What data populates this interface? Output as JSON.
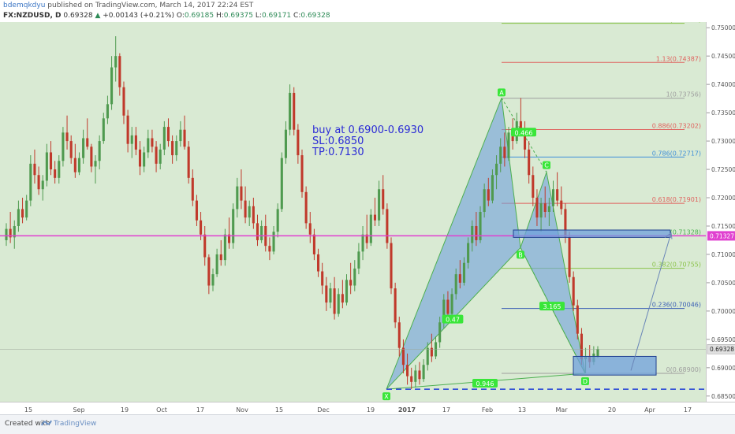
{
  "header": {
    "author": "bdemqkdyu",
    "published": "published on TradingView.com, March 14, 2017 22:24 EST",
    "symbol": "FX:NZDUSD, D",
    "last": "0.69328",
    "change": "+0.00143 (+0.21%)",
    "o_label": "O:",
    "open": "0.69185",
    "h_label": "H:",
    "high": "0.69375",
    "l_label": "L:",
    "low": "0.69171",
    "c_label": "C:",
    "close": "0.69328"
  },
  "footer": {
    "created_with": "Created with",
    "brand": "TradingView"
  },
  "colors": {
    "background": "#d9ead3",
    "up_candle": "#4f9a4f",
    "down_candle": "#c0392b",
    "pattern_fill": "#6fa0dc",
    "horizontal_line": "#e040d0",
    "support_dash": "#1f3fd6",
    "annotation_text": "#2b2bd6"
  },
  "annotation": {
    "line1": "buy at  0.6900-0.6930",
    "line2": "SL:0.6850",
    "line3": "TP:0.7130"
  },
  "chart_data": {
    "type": "candlestick",
    "symbol": "FX:NZDUSD",
    "timeframe": "D",
    "ylim": [
      0.684,
      0.751
    ],
    "y_ticks": [
      "0.75000",
      "0.74500",
      "0.74000",
      "0.73500",
      "0.73000",
      "0.72500",
      "0.72000",
      "0.71500",
      "0.71000",
      "0.70500",
      "0.70000",
      "0.69500",
      "0.69000",
      "0.68500"
    ],
    "x_ticks": [
      "15",
      "Sep",
      "19",
      "Oct",
      "17",
      "Nov",
      "15",
      "Dec",
      "19",
      "2017",
      "17",
      "Feb",
      "13",
      "Mar",
      "20",
      "Apr",
      "17"
    ],
    "current_price": "0.69328",
    "horizontal_line": "0.71327",
    "fib_levels": [
      {
        "label": "1.272(0.75077)",
        "value": 0.75077,
        "color": "#8bc34a"
      },
      {
        "label": "1.13(0.74387)",
        "value": 0.74387,
        "color": "#e0625e"
      },
      {
        "label": "1(0.73756)",
        "value": 0.73756,
        "color": "#9e9e9e"
      },
      {
        "label": "0.886(0.73202)",
        "value": 0.73202,
        "color": "#e0625e"
      },
      {
        "label": "0.786(0.72717)",
        "value": 0.72717,
        "color": "#3f8fd8"
      },
      {
        "label": "0.618(0.71901)",
        "value": 0.71901,
        "color": "#e0625e"
      },
      {
        "label": "(0.71328)",
        "value": 0.71328,
        "color": "#4caf50"
      },
      {
        "label": "0.382(0.70755)",
        "value": 0.70755,
        "color": "#8bc34a"
      },
      {
        "label": "0.236(0.70046)",
        "value": 0.70046,
        "color": "#3a5fb5"
      },
      {
        "label": "0(0.68900)",
        "value": 0.689,
        "color": "#9e9e9e"
      }
    ],
    "pattern_points": [
      {
        "label": "X",
        "value": 0.6862
      },
      {
        "label": "A",
        "value": 0.7376
      },
      {
        "label": "B",
        "value": 0.7112
      },
      {
        "label": "C",
        "value": 0.7245
      },
      {
        "label": "D",
        "value": 0.689
      }
    ],
    "pattern_ratios": [
      "0.466",
      "0.47",
      "3.165",
      "0.946"
    ],
    "support_line": 0.6862,
    "candles": [
      [
        0.7125,
        0.7155,
        0.7115,
        0.7145
      ],
      [
        0.7145,
        0.7175,
        0.712,
        0.713
      ],
      [
        0.713,
        0.716,
        0.711,
        0.715
      ],
      [
        0.715,
        0.7195,
        0.714,
        0.718
      ],
      [
        0.718,
        0.72,
        0.7155,
        0.7165
      ],
      [
        0.7165,
        0.7205,
        0.716,
        0.7195
      ],
      [
        0.7195,
        0.7275,
        0.7185,
        0.726
      ],
      [
        0.726,
        0.7285,
        0.7225,
        0.724
      ],
      [
        0.724,
        0.7255,
        0.7205,
        0.7215
      ],
      [
        0.7215,
        0.724,
        0.7195,
        0.723
      ],
      [
        0.723,
        0.7295,
        0.722,
        0.728
      ],
      [
        0.728,
        0.73,
        0.724,
        0.725
      ],
      [
        0.725,
        0.7265,
        0.7225,
        0.7235
      ],
      [
        0.7235,
        0.7275,
        0.7225,
        0.7265
      ],
      [
        0.7265,
        0.7325,
        0.7255,
        0.7315
      ],
      [
        0.7315,
        0.7345,
        0.7285,
        0.73
      ],
      [
        0.73,
        0.731,
        0.726,
        0.727
      ],
      [
        0.727,
        0.7295,
        0.7235,
        0.7245
      ],
      [
        0.7245,
        0.728,
        0.724,
        0.727
      ],
      [
        0.727,
        0.732,
        0.726,
        0.7305
      ],
      [
        0.7305,
        0.734,
        0.7285,
        0.729
      ],
      [
        0.729,
        0.7295,
        0.7245,
        0.7255
      ],
      [
        0.7255,
        0.7275,
        0.7225,
        0.7265
      ],
      [
        0.7265,
        0.731,
        0.725,
        0.73
      ],
      [
        0.73,
        0.735,
        0.7295,
        0.734
      ],
      [
        0.734,
        0.738,
        0.733,
        0.7365
      ],
      [
        0.7365,
        0.745,
        0.7355,
        0.743
      ],
      [
        0.743,
        0.7485,
        0.7405,
        0.745
      ],
      [
        0.745,
        0.7455,
        0.738,
        0.7395
      ],
      [
        0.7395,
        0.7405,
        0.733,
        0.7345
      ],
      [
        0.7345,
        0.7355,
        0.728,
        0.7295
      ],
      [
        0.7295,
        0.7325,
        0.727,
        0.731
      ],
      [
        0.731,
        0.7325,
        0.7275,
        0.7285
      ],
      [
        0.7285,
        0.73,
        0.724,
        0.7255
      ],
      [
        0.7255,
        0.729,
        0.7245,
        0.728
      ],
      [
        0.728,
        0.732,
        0.727,
        0.7305
      ],
      [
        0.7305,
        0.732,
        0.728,
        0.729
      ],
      [
        0.729,
        0.73,
        0.7245,
        0.726
      ],
      [
        0.726,
        0.7295,
        0.725,
        0.7285
      ],
      [
        0.7285,
        0.7335,
        0.7275,
        0.7325
      ],
      [
        0.7325,
        0.734,
        0.729,
        0.73
      ],
      [
        0.73,
        0.731,
        0.726,
        0.7275
      ],
      [
        0.7275,
        0.731,
        0.7265,
        0.73
      ],
      [
        0.73,
        0.7335,
        0.729,
        0.732
      ],
      [
        0.732,
        0.7345,
        0.7285,
        0.729
      ],
      [
        0.729,
        0.73,
        0.7225,
        0.7235
      ],
      [
        0.7235,
        0.725,
        0.7185,
        0.7195
      ],
      [
        0.7195,
        0.7205,
        0.715,
        0.716
      ],
      [
        0.716,
        0.7175,
        0.7125,
        0.7135
      ],
      [
        0.7135,
        0.715,
        0.708,
        0.7095
      ],
      [
        0.7095,
        0.71,
        0.703,
        0.7045
      ],
      [
        0.7045,
        0.7075,
        0.7035,
        0.7065
      ],
      [
        0.7065,
        0.711,
        0.706,
        0.71
      ],
      [
        0.71,
        0.7125,
        0.708,
        0.709
      ],
      [
        0.709,
        0.7145,
        0.708,
        0.7135
      ],
      [
        0.7135,
        0.7165,
        0.711,
        0.712
      ],
      [
        0.712,
        0.719,
        0.711,
        0.718
      ],
      [
        0.718,
        0.7235,
        0.7165,
        0.722
      ],
      [
        0.722,
        0.725,
        0.718,
        0.7195
      ],
      [
        0.7195,
        0.722,
        0.7155,
        0.7165
      ],
      [
        0.7165,
        0.7195,
        0.715,
        0.7185
      ],
      [
        0.7185,
        0.72,
        0.7145,
        0.7155
      ],
      [
        0.7155,
        0.717,
        0.7115,
        0.7125
      ],
      [
        0.7125,
        0.716,
        0.712,
        0.715
      ],
      [
        0.715,
        0.717,
        0.7105,
        0.7115
      ],
      [
        0.7115,
        0.713,
        0.709,
        0.7105
      ],
      [
        0.7105,
        0.715,
        0.71,
        0.714
      ],
      [
        0.714,
        0.719,
        0.713,
        0.718
      ],
      [
        0.718,
        0.728,
        0.7175,
        0.727
      ],
      [
        0.727,
        0.7335,
        0.726,
        0.732
      ],
      [
        0.732,
        0.74,
        0.731,
        0.7385
      ],
      [
        0.7385,
        0.7395,
        0.731,
        0.732
      ],
      [
        0.732,
        0.733,
        0.726,
        0.7275
      ],
      [
        0.7275,
        0.7285,
        0.72,
        0.721
      ],
      [
        0.721,
        0.722,
        0.7145,
        0.7155
      ],
      [
        0.7155,
        0.7175,
        0.712,
        0.7135
      ],
      [
        0.7135,
        0.7145,
        0.709,
        0.71
      ],
      [
        0.71,
        0.711,
        0.706,
        0.707
      ],
      [
        0.707,
        0.7085,
        0.703,
        0.7045
      ],
      [
        0.7045,
        0.706,
        0.7,
        0.7015
      ],
      [
        0.7015,
        0.705,
        0.7005,
        0.704
      ],
      [
        0.704,
        0.706,
        0.6985,
        0.6995
      ],
      [
        0.6995,
        0.704,
        0.699,
        0.703
      ],
      [
        0.703,
        0.7055,
        0.7005,
        0.7015
      ],
      [
        0.7015,
        0.7065,
        0.701,
        0.7055
      ],
      [
        0.7055,
        0.7085,
        0.703,
        0.7045
      ],
      [
        0.7045,
        0.709,
        0.7035,
        0.7075
      ],
      [
        0.7075,
        0.712,
        0.7065,
        0.7105
      ],
      [
        0.7105,
        0.715,
        0.709,
        0.7135
      ],
      [
        0.7135,
        0.717,
        0.711,
        0.712
      ],
      [
        0.712,
        0.718,
        0.7115,
        0.717
      ],
      [
        0.717,
        0.72,
        0.715,
        0.716
      ],
      [
        0.716,
        0.723,
        0.715,
        0.7215
      ],
      [
        0.7215,
        0.724,
        0.717,
        0.718
      ],
      [
        0.718,
        0.719,
        0.711,
        0.712
      ],
      [
        0.712,
        0.713,
        0.703,
        0.704
      ],
      [
        0.704,
        0.705,
        0.697,
        0.698
      ],
      [
        0.698,
        0.699,
        0.692,
        0.6935
      ],
      [
        0.6935,
        0.695,
        0.689,
        0.6905
      ],
      [
        0.6905,
        0.6925,
        0.687,
        0.6885
      ],
      [
        0.6885,
        0.69,
        0.6862,
        0.6875
      ],
      [
        0.6875,
        0.6905,
        0.6865,
        0.6895
      ],
      [
        0.6895,
        0.691,
        0.687,
        0.688
      ],
      [
        0.688,
        0.6915,
        0.6875,
        0.6905
      ],
      [
        0.6905,
        0.6945,
        0.6895,
        0.6935
      ],
      [
        0.6935,
        0.696,
        0.691,
        0.692
      ],
      [
        0.692,
        0.6955,
        0.6915,
        0.6945
      ],
      [
        0.6945,
        0.699,
        0.6935,
        0.698
      ],
      [
        0.698,
        0.703,
        0.697,
        0.702
      ],
      [
        0.702,
        0.7035,
        0.6985,
        0.6995
      ],
      [
        0.6995,
        0.704,
        0.6985,
        0.703
      ],
      [
        0.703,
        0.7075,
        0.702,
        0.7065
      ],
      [
        0.7065,
        0.709,
        0.704,
        0.705
      ],
      [
        0.705,
        0.7095,
        0.7045,
        0.7085
      ],
      [
        0.7085,
        0.713,
        0.7075,
        0.712
      ],
      [
        0.712,
        0.716,
        0.7105,
        0.715
      ],
      [
        0.715,
        0.7175,
        0.7115,
        0.7125
      ],
      [
        0.7125,
        0.7185,
        0.712,
        0.7175
      ],
      [
        0.7175,
        0.7225,
        0.7165,
        0.7215
      ],
      [
        0.7215,
        0.7235,
        0.7185,
        0.7195
      ],
      [
        0.7195,
        0.725,
        0.719,
        0.724
      ],
      [
        0.724,
        0.7275,
        0.7215,
        0.726
      ],
      [
        0.726,
        0.7305,
        0.7245,
        0.729
      ],
      [
        0.729,
        0.7315,
        0.7255,
        0.727
      ],
      [
        0.727,
        0.7325,
        0.7265,
        0.7315
      ],
      [
        0.7315,
        0.734,
        0.7285,
        0.73
      ],
      [
        0.73,
        0.735,
        0.7295,
        0.7335
      ],
      [
        0.7335,
        0.7376,
        0.731,
        0.732
      ],
      [
        0.732,
        0.7335,
        0.727,
        0.7285
      ],
      [
        0.7285,
        0.73,
        0.7225,
        0.724
      ],
      [
        0.724,
        0.7255,
        0.7185,
        0.72
      ],
      [
        0.72,
        0.7215,
        0.715,
        0.7165
      ],
      [
        0.7165,
        0.72,
        0.714,
        0.719
      ],
      [
        0.719,
        0.722,
        0.7165,
        0.7175
      ],
      [
        0.7175,
        0.72,
        0.715,
        0.7185
      ],
      [
        0.7185,
        0.723,
        0.7175,
        0.7215
      ],
      [
        0.7215,
        0.7245,
        0.7185,
        0.7195
      ],
      [
        0.7195,
        0.722,
        0.717,
        0.718
      ],
      [
        0.718,
        0.719,
        0.712,
        0.713
      ],
      [
        0.713,
        0.714,
        0.705,
        0.706
      ],
      [
        0.706,
        0.707,
        0.7,
        0.701
      ],
      [
        0.701,
        0.702,
        0.695,
        0.696
      ],
      [
        0.696,
        0.697,
        0.6905,
        0.6915
      ],
      [
        0.6915,
        0.6935,
        0.689,
        0.692
      ],
      [
        0.692,
        0.694,
        0.69,
        0.691
      ],
      [
        0.691,
        0.6938,
        0.6905,
        0.6925
      ],
      [
        0.6919,
        0.6938,
        0.6917,
        0.6933
      ]
    ]
  }
}
